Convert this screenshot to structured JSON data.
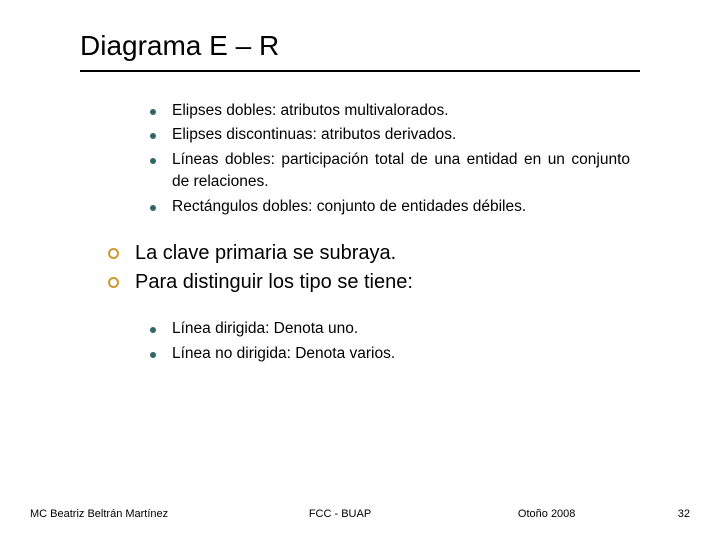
{
  "title": "Diagrama E – R",
  "dot_color": "#336666",
  "ring_color": "#cc9933",
  "underline_color": "#000000",
  "font_family": "Verdana, Geneva, sans-serif",
  "group1": [
    "Elipses dobles: atributos multivalorados.",
    "Elipses discontinuas: atributos derivados.",
    "Líneas dobles: participación total de una entidad en un conjunto de relaciones.",
    "Rectángulos dobles: conjunto de entidades débiles."
  ],
  "ring_items": [
    "La clave primaria se subraya.",
    "Para distinguir los tipo se tiene:"
  ],
  "group2": [
    "Línea dirigida: Denota uno.",
    "Línea no dirigida: Denota varios."
  ],
  "footer": {
    "author": "MC Beatriz Beltrán Martínez",
    "institution": "FCC - BUAP",
    "term": "Otoño 2008",
    "page": "32"
  },
  "font_sizes": {
    "title": 28,
    "sub_bullet": 15.5,
    "ring": 20,
    "footer": 11
  }
}
